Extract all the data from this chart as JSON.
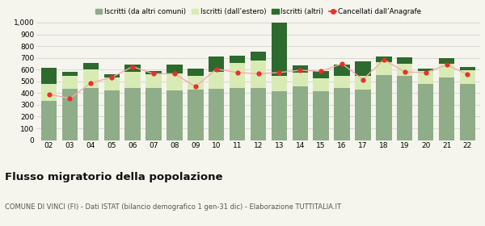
{
  "years": [
    "02",
    "03",
    "04",
    "05",
    "06",
    "07",
    "08",
    "09",
    "10",
    "11",
    "12",
    "13",
    "14",
    "15",
    "16",
    "17",
    "18",
    "19",
    "20",
    "21",
    "22"
  ],
  "iscritti_altri_comuni": [
    335,
    435,
    445,
    425,
    445,
    445,
    425,
    430,
    440,
    445,
    445,
    415,
    455,
    415,
    445,
    430,
    555,
    545,
    475,
    530,
    480
  ],
  "iscritti_estero": [
    145,
    110,
    155,
    105,
    135,
    115,
    145,
    120,
    140,
    210,
    235,
    130,
    120,
    110,
    100,
    120,
    110,
    105,
    110,
    120,
    115
  ],
  "iscritti_altri": [
    135,
    35,
    60,
    30,
    65,
    25,
    70,
    60,
    130,
    65,
    75,
    975,
    60,
    65,
    95,
    120,
    45,
    55,
    25,
    50,
    25
  ],
  "cancellati": [
    390,
    355,
    485,
    535,
    625,
    565,
    565,
    455,
    605,
    575,
    565,
    575,
    595,
    585,
    650,
    515,
    685,
    580,
    575,
    640,
    560
  ],
  "color_altri_comuni": "#8fad88",
  "color_estero": "#d9ebb5",
  "color_altri": "#2d6a2d",
  "color_cancellati": "#e8302a",
  "ylim": [
    0,
    1000
  ],
  "yticks": [
    0,
    100,
    200,
    300,
    400,
    500,
    600,
    700,
    800,
    900,
    1000
  ],
  "ytick_labels": [
    "0",
    "100",
    "200",
    "300",
    "400",
    "500",
    "600",
    "700",
    "800",
    "900",
    "1,000"
  ],
  "title": "Flusso migratorio della popolazione",
  "subtitle": "COMUNE DI VINCI (FI) - Dati ISTAT (bilancio demografico 1 gen-31 dic) - Elaborazione TUTTITALIA.IT",
  "legend_labels": [
    "Iscritti (da altri comuni)",
    "Iscritti (dall’estero)",
    "Iscritti (altri)",
    "Cancellati dall’Anagrafe"
  ],
  "bg_color": "#f5f5ee"
}
